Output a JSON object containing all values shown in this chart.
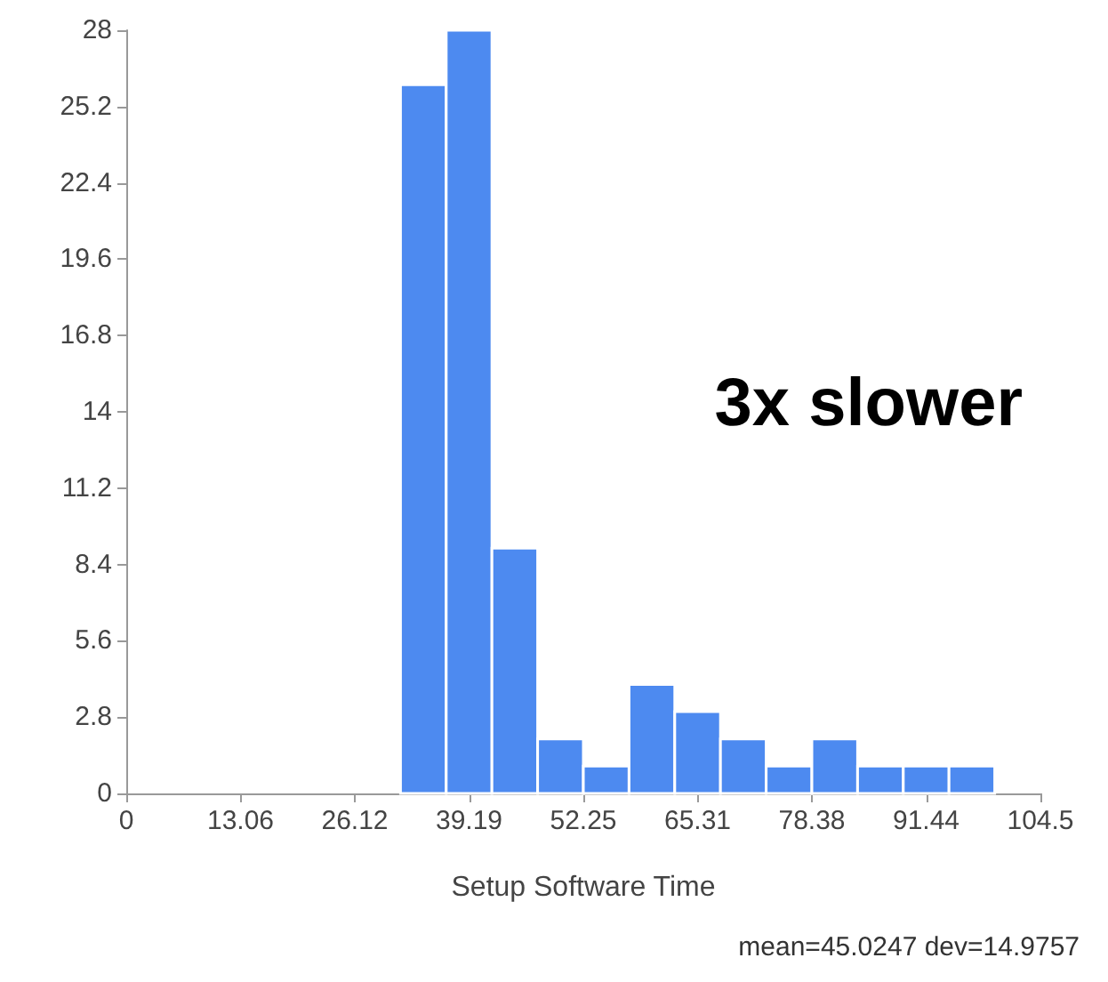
{
  "chart_data": {
    "type": "histogram",
    "xlabel": "Setup Software Time",
    "bins": [
      0,
      5.225,
      10.45,
      15.675,
      20.9,
      26.125,
      31.35,
      36.575,
      41.8,
      47.025,
      52.25,
      57.475,
      62.7,
      67.925,
      73.15,
      78.375,
      83.6,
      88.825,
      94.05,
      99.275,
      104.5
    ],
    "values": [
      0,
      0,
      0,
      0,
      0,
      0,
      26,
      28,
      9,
      2,
      1,
      4,
      3,
      2,
      1,
      2,
      1,
      1,
      1,
      0
    ],
    "color": "#4d8af0",
    "xlim": [
      0,
      104.5
    ],
    "xticks": [
      0,
      {
        "value": 13.0625,
        "label": "13.06"
      },
      {
        "value": 26.125,
        "label": "26.12"
      },
      {
        "value": 39.1875,
        "label": "39.19"
      },
      52.25,
      {
        "value": 65.3125,
        "label": "65.31"
      },
      {
        "value": 78.375,
        "label": "78.38"
      },
      {
        "value": 91.4375,
        "label": "91.44"
      },
      104.5
    ],
    "ylim": [
      0,
      28
    ],
    "yticks": [
      0,
      2.8,
      5.6,
      8.4,
      11.2,
      14,
      16.8,
      19.6,
      22.4,
      25.2,
      28
    ],
    "grid": false,
    "annotations": [
      "3x slower",
      "mean=45.0247 dev=14.9757"
    ]
  }
}
